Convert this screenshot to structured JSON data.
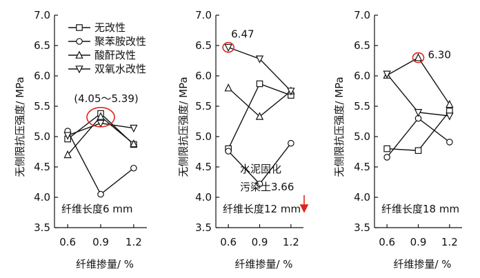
{
  "chart_data": [
    {
      "type": "line",
      "panel_label": "纤维长度6 mm",
      "ylabel": "无侧限抗压强度/ MPa",
      "xlabel": "纤维掺量/ %",
      "x": [
        0.6,
        0.9,
        1.2
      ],
      "x_tick_labels": [
        "0.6",
        "0.9",
        "1.2"
      ],
      "ylim": [
        3.5,
        7.0
      ],
      "y_tick_labels": [
        "3.5",
        "4.0",
        "4.5",
        "5.0",
        "5.5",
        "6.0",
        "6.5",
        "7.0"
      ],
      "series": [
        {
          "name": "无改性",
          "marker": "square",
          "values": [
            4.96,
            5.38,
            4.87
          ]
        },
        {
          "name": "聚苯胺改性",
          "marker": "circle",
          "values": [
            5.09,
            4.05,
            4.48
          ]
        },
        {
          "name": "酸酐改性",
          "marker": "triangle-up",
          "values": [
            4.7,
            5.33,
            4.88
          ]
        },
        {
          "name": "双氧水改性",
          "marker": "triangle-down",
          "values": [
            5.02,
            5.22,
            5.14
          ]
        }
      ],
      "annotation": {
        "text": "(4.05～5.39)",
        "x": 0.9,
        "y": 5.32
      },
      "legend": "top-left"
    },
    {
      "type": "line",
      "panel_label": "纤维长度12 mm",
      "ylabel": "无侧限抗压强度/ MPa",
      "xlabel": "纤维掺量/ %",
      "x": [
        0.6,
        0.9,
        1.2
      ],
      "x_tick_labels": [
        "0.6",
        "0.9",
        "1.2"
      ],
      "ylim": [
        3.5,
        7.0
      ],
      "y_tick_labels": [
        "3.5",
        "4.0",
        "4.5",
        "5.0",
        "5.5",
        "6.0",
        "6.5",
        "7.0"
      ],
      "series": [
        {
          "name": "无改性",
          "marker": "square",
          "values": [
            4.8,
            5.87,
            5.68
          ]
        },
        {
          "name": "聚苯胺改性",
          "marker": "circle",
          "values": [
            4.76,
            4.22,
            4.89
          ]
        },
        {
          "name": "酸酐改性",
          "marker": "triangle-up",
          "values": [
            5.8,
            5.33,
            5.75
          ]
        },
        {
          "name": "双氧水改性",
          "marker": "triangle-down",
          "values": [
            6.47,
            6.28,
            5.75
          ]
        }
      ],
      "annotation": {
        "text": "6.47",
        "x": 0.6,
        "y": 6.47
      },
      "reference": {
        "line1": "水泥固化",
        "line2": "污染土3.66"
      }
    },
    {
      "type": "line",
      "panel_label": "纤维长度18 mm",
      "ylabel": "无侧限抗压强度/ MPa",
      "xlabel": "纤维掺量/ %",
      "x": [
        0.6,
        0.9,
        1.2
      ],
      "x_tick_labels": [
        "0.6",
        "0.9",
        "1.2"
      ],
      "ylim": [
        3.5,
        7.0
      ],
      "y_tick_labels": [
        "3.5",
        "4.0",
        "4.5",
        "5.0",
        "5.5",
        "6.0",
        "6.5",
        "7.0"
      ],
      "series": [
        {
          "name": "无改性",
          "marker": "square",
          "values": [
            4.8,
            4.77,
            5.42
          ]
        },
        {
          "name": "聚苯胺改性",
          "marker": "circle",
          "values": [
            4.66,
            5.3,
            4.91
          ]
        },
        {
          "name": "酸酐改性",
          "marker": "triangle-up",
          "values": [
            6.01,
            6.3,
            5.53
          ]
        },
        {
          "name": "双氧水改性",
          "marker": "triangle-down",
          "values": [
            6.03,
            5.4,
            5.34
          ]
        }
      ],
      "annotation": {
        "text": "6.30",
        "x": 0.9,
        "y": 6.3
      }
    }
  ],
  "colors": {
    "line": "#111111",
    "highlight": "#e0241b",
    "background": "#ffffff"
  }
}
